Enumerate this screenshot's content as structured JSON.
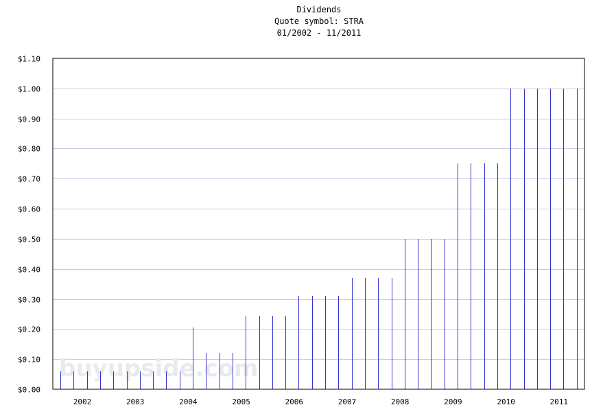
{
  "chart_data": {
    "type": "bar",
    "title": "Dividends",
    "subtitle": "Quote symbol: STRA",
    "date_range": "01/2002 - 11/2011",
    "xlabel": "",
    "ylabel": "",
    "watermark": "buyupside.com",
    "ylim": [
      0,
      1.1
    ],
    "y_ticks": [
      "$0.00",
      "$0.10",
      "$0.20",
      "$0.30",
      "$0.40",
      "$0.50",
      "$0.60",
      "$0.70",
      "$0.80",
      "$0.90",
      "$1.00",
      "$1.10"
    ],
    "x_ticks": [
      "2002",
      "2003",
      "2004",
      "2005",
      "2006",
      "2007",
      "2008",
      "2009",
      "2010",
      "2011"
    ],
    "grid": true,
    "bar_color": "#3333cc",
    "grid_color": "#c8c8e6",
    "series": [
      {
        "x": [
          2002.0,
          2002.25,
          2002.5,
          2002.75,
          2003.0,
          2003.25,
          2003.5,
          2003.75,
          2004.0,
          2004.25,
          2004.5,
          2004.75,
          2005.0,
          2005.25,
          2005.5,
          2005.75,
          2006.0,
          2006.25,
          2006.5,
          2006.75,
          2007.0,
          2007.25,
          2007.5,
          2007.75,
          2008.0,
          2008.25,
          2008.5,
          2008.75,
          2009.0,
          2009.25,
          2009.5,
          2009.75,
          2010.0,
          2010.25,
          2010.5,
          2010.75,
          2011.0,
          2011.25,
          2011.5,
          2011.75
        ],
        "values": [
          0.06,
          0.06,
          0.06,
          0.06,
          0.06,
          0.06,
          0.06,
          0.06,
          0.06,
          0.06,
          0.205,
          0.12,
          0.12,
          0.12,
          0.245,
          0.245,
          0.245,
          0.245,
          0.31,
          0.31,
          0.31,
          0.31,
          0.37,
          0.37,
          0.37,
          0.37,
          0.5,
          0.5,
          0.5,
          0.5,
          0.75,
          0.75,
          0.75,
          0.75,
          1.0,
          1.0,
          1.0,
          1.0,
          1.0,
          1.0
        ]
      }
    ]
  }
}
